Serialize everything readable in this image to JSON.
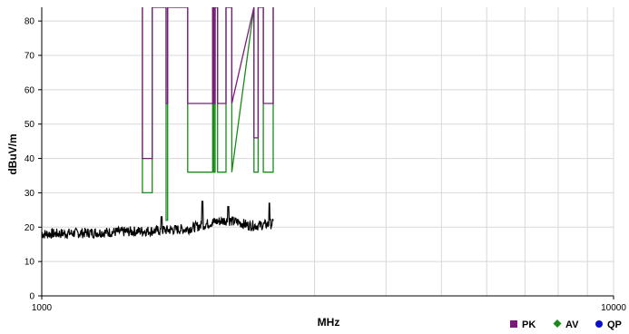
{
  "chart_data": {
    "type": "line",
    "x_scale": "log",
    "xlabel": "MHz",
    "ylabel": "dBuV/m",
    "xlim": [
      1000,
      10000
    ],
    "ylim": [
      0,
      84
    ],
    "grid": true,
    "x_ticks": [
      1000,
      10000
    ],
    "x_tick_labels": [
      "1000",
      "10000"
    ],
    "y_ticks": [
      0,
      10,
      20,
      30,
      40,
      50,
      60,
      70,
      80
    ],
    "legend_position": "bottom-right",
    "legend": [
      {
        "label": "PK",
        "color": "#7b1a7b",
        "marker": "square"
      },
      {
        "label": "AV",
        "color": "#1a8a1a",
        "marker": "diamond"
      },
      {
        "label": "QP",
        "color": "#0a10c8",
        "marker": "circle"
      }
    ],
    "series": [
      {
        "name": "PK",
        "color": "#7b1a7b",
        "x": [
          1500,
          1500,
          1560,
          1560,
          1650,
          1650,
          1660,
          1660,
          1800,
          1800,
          1990,
          1990,
          2000,
          2000,
          2010,
          2010,
          2030,
          2030,
          2100,
          2100,
          2150,
          2150,
          2350,
          2350,
          2390,
          2390,
          2440,
          2440,
          2540,
          2540
        ],
        "y": [
          84,
          40,
          40,
          84,
          84,
          56,
          56,
          84,
          84,
          56,
          56,
          84,
          84,
          56,
          56,
          84,
          84,
          56,
          56,
          84,
          84,
          56,
          84,
          46,
          46,
          84,
          84,
          56,
          56,
          84
        ]
      },
      {
        "name": "AV",
        "color": "#1a8a1a",
        "x": [
          1500,
          1500,
          1560,
          1560,
          1650,
          1650,
          1660,
          1660,
          1800,
          1800,
          1990,
          1990,
          2000,
          2000,
          2010,
          2010,
          2030,
          2030,
          2100,
          2100,
          2150,
          2150,
          2350,
          2350,
          2390,
          2390,
          2440,
          2440,
          2540,
          2540
        ],
        "y": [
          84,
          30,
          30,
          84,
          84,
          22,
          22,
          84,
          84,
          36,
          36,
          84,
          84,
          36,
          36,
          84,
          84,
          36,
          36,
          84,
          84,
          36,
          84,
          36,
          36,
          84,
          84,
          36,
          36,
          84
        ]
      },
      {
        "name": "Trace",
        "color": "#000000",
        "x_range": [
          1000,
          2540
        ],
        "y_segments": [
          {
            "x": [
              1000,
              1300,
              1600,
              1800,
              1900,
              2000,
              2100,
              2200,
              2300,
              2400,
              2540
            ],
            "y": [
              18,
              18.5,
              19,
              19.5,
              20.5,
              21.5,
              22,
              21.5,
              20.5,
              20.5,
              21
            ]
          }
        ],
        "noise_amplitude": 1.5,
        "spikes": [
          {
            "x": 1910,
            "y": 27.5
          },
          {
            "x": 2500,
            "y": 27
          },
          {
            "x": 2120,
            "y": 26
          },
          {
            "x": 1620,
            "y": 23
          }
        ]
      }
    ]
  }
}
